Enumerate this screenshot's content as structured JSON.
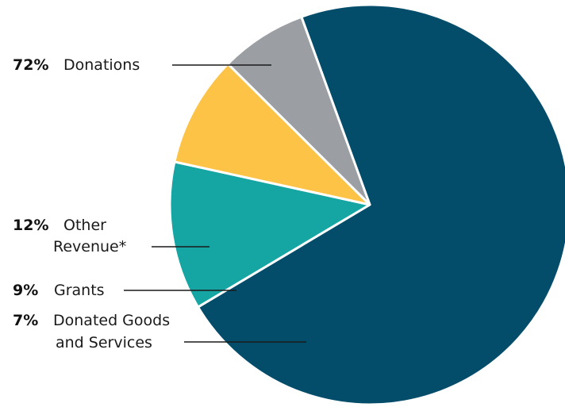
{
  "chart_data": {
    "type": "pie",
    "slices": [
      {
        "label": "Donations",
        "value": 72,
        "percent_label": "72%",
        "color": "#034d6b"
      },
      {
        "label": "Other Revenue*",
        "label_lines": [
          "Other",
          "Revenue*"
        ],
        "value": 12,
        "percent_label": "12%",
        "color": "#15a6a3"
      },
      {
        "label": "Grants",
        "value": 9,
        "percent_label": "9%",
        "color": "#fcc346"
      },
      {
        "label": "Donated Goods and Services",
        "label_lines": [
          "Donated Goods",
          "and Services"
        ],
        "value": 7,
        "percent_label": "7%",
        "color": "#9b9ea2"
      }
    ]
  }
}
